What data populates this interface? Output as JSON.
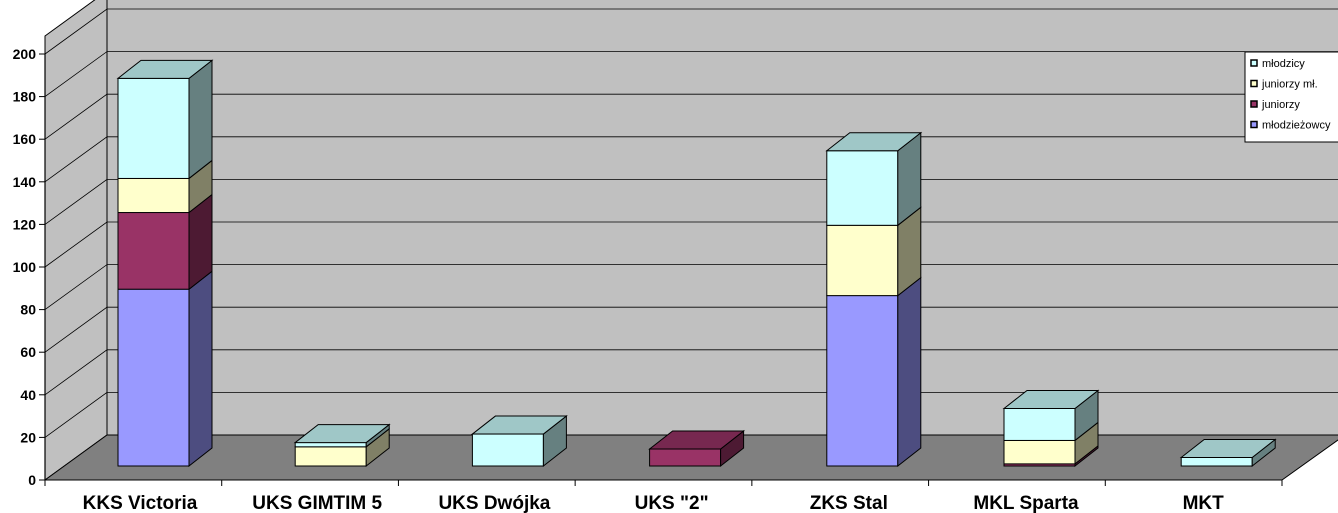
{
  "chart_data": {
    "type": "bar",
    "stacked": true,
    "three_d": true,
    "categories": [
      "KKS Victoria",
      "UKS GIMTIM 5",
      "UKS Dwójka",
      "UKS \"2\"",
      "ZKS Stal",
      "MKL Sparta",
      "MKT"
    ],
    "series": [
      {
        "name": "młodzieżowcy",
        "color": "#9999ff",
        "values": [
          83,
          0,
          0,
          0,
          80,
          0,
          0
        ]
      },
      {
        "name": "juniorzy",
        "color": "#993366",
        "values": [
          36,
          0,
          0,
          8,
          0,
          1,
          0
        ]
      },
      {
        "name": "juniorzy mł.",
        "color": "#ffffcc",
        "values": [
          16,
          9,
          0,
          0,
          33,
          11,
          0
        ]
      },
      {
        "name": "młodzicy",
        "color": "#ccffff",
        "values": [
          47,
          2,
          15,
          0,
          35,
          15,
          4
        ]
      }
    ],
    "legend_order": [
      "młodzicy",
      "juniorzy mł.",
      "juniorzy",
      "młodzieżowcy"
    ],
    "ylim": [
      0,
      200
    ],
    "yticks": [
      0,
      20,
      40,
      60,
      80,
      100,
      120,
      140,
      160,
      180,
      200
    ],
    "grid": true,
    "legend_position": "top-right",
    "title": "",
    "xlabel": "",
    "ylabel": "",
    "wall_color": "#c0c0c0",
    "floor_color": "#808080"
  }
}
